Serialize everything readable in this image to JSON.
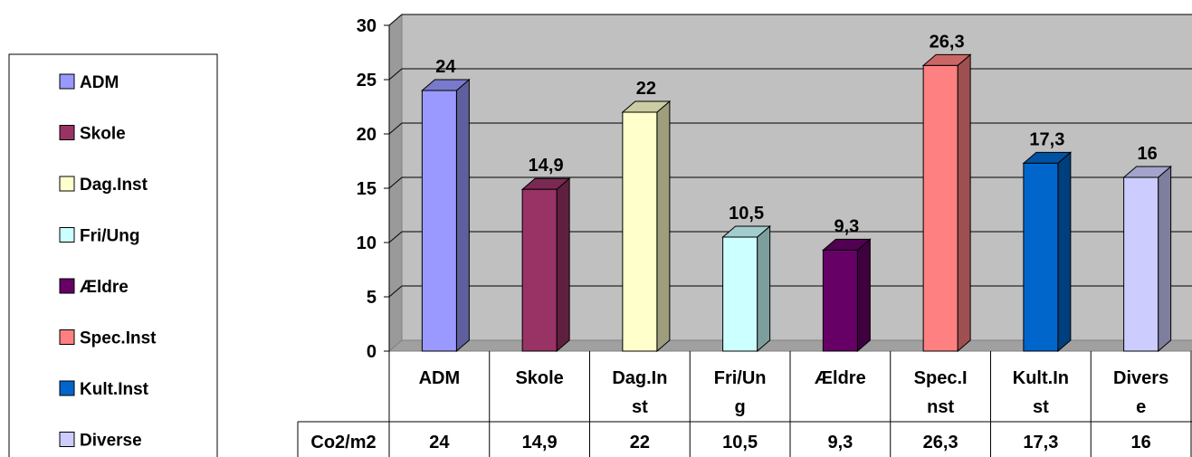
{
  "chart_data": {
    "type": "bar",
    "categories": [
      "ADM",
      "Skole",
      "Dag.Inst",
      "Fri/Ung",
      "Ældre",
      "Spec.Inst",
      "Kult.Inst",
      "Diverse"
    ],
    "category_tick_lines": [
      [
        "ADM"
      ],
      [
        "Skole"
      ],
      [
        "Dag.In",
        "st"
      ],
      [
        "Fri/Un",
        "g"
      ],
      [
        "Ældre"
      ],
      [
        "Spec.I",
        "nst"
      ],
      [
        "Kult.In",
        "st"
      ],
      [
        "Divers",
        "e"
      ]
    ],
    "values": [
      24,
      14.9,
      22,
      10.5,
      9.3,
      26.3,
      17.3,
      16
    ],
    "value_labels": [
      "24",
      "14,9",
      "22",
      "10,5",
      "9,3",
      "26,3",
      "17,3",
      "16"
    ],
    "y_ticks": [
      "0",
      "5",
      "10",
      "15",
      "20",
      "25",
      "30"
    ],
    "ylim": [
      0,
      30
    ],
    "grid": true,
    "legend_placement": "left",
    "data_table": {
      "row_label": "Co2/m2"
    },
    "colors": {
      "ADM": "#9999ff",
      "Skole": "#993366",
      "Dag.Inst": "#ffffcc",
      "Fri/Ung": "#ccffff",
      "Ældre": "#660066",
      "Spec.Inst": "#ff8080",
      "Kult.Inst": "#0066cc",
      "Diverse": "#ccccff"
    },
    "wall_color": "#c0c0c0"
  }
}
